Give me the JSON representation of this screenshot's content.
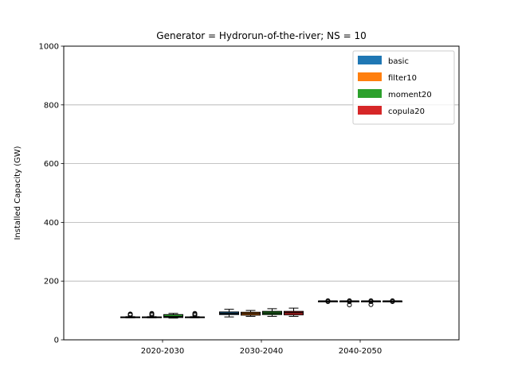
{
  "chart_data": {
    "type": "box",
    "title": "Generator = Hydrorun-of-the-river; NS = 10",
    "xlabel": "",
    "ylabel": "Installed Capacity (GW)",
    "ylim": [
      0,
      1000
    ],
    "yticks": [
      0,
      200,
      400,
      600,
      800,
      1000
    ],
    "grid": "y",
    "legend_placement": "top-right",
    "categories": [
      "2020-2030",
      "2030-2040",
      "2040-2050"
    ],
    "series": [
      {
        "name": "basic",
        "color": "#1f77b4",
        "boxes": [
          {
            "whislo": 75,
            "q1": 76,
            "med": 77,
            "q3": 78,
            "whishi": 79,
            "fliers": [
              84,
              86,
              88
            ]
          },
          {
            "whislo": 78,
            "q1": 86,
            "med": 90,
            "q3": 95,
            "whishi": 104,
            "fliers": []
          },
          {
            "whislo": 132,
            "q1": 132,
            "med": 132,
            "q3": 132,
            "whishi": 132,
            "fliers": [
              130,
              133
            ]
          }
        ]
      },
      {
        "name": "filter10",
        "color": "#ff7f0e",
        "boxes": [
          {
            "whislo": 75,
            "q1": 76,
            "med": 77,
            "q3": 78,
            "whishi": 79,
            "fliers": [
              84,
              87,
              90
            ]
          },
          {
            "whislo": 80,
            "q1": 84,
            "med": 89,
            "q3": 94,
            "whishi": 100,
            "fliers": []
          },
          {
            "whislo": 132,
            "q1": 132,
            "med": 132,
            "q3": 132,
            "whishi": 132,
            "fliers": [
              119,
              130,
              133
            ]
          }
        ]
      },
      {
        "name": "moment20",
        "color": "#2ca02c",
        "boxes": [
          {
            "whislo": 74,
            "q1": 76,
            "med": 79,
            "q3": 86,
            "whishi": 90,
            "fliers": []
          },
          {
            "whislo": 80,
            "q1": 86,
            "med": 91,
            "q3": 97,
            "whishi": 106,
            "fliers": []
          },
          {
            "whislo": 132,
            "q1": 132,
            "med": 132,
            "q3": 132,
            "whishi": 132,
            "fliers": [
              120,
              130,
              133
            ]
          }
        ]
      },
      {
        "name": "copula20",
        "color": "#d62728",
        "boxes": [
          {
            "whislo": 75,
            "q1": 76,
            "med": 77,
            "q3": 78,
            "whishi": 79,
            "fliers": [
              84,
              87,
              90
            ]
          },
          {
            "whislo": 80,
            "q1": 85,
            "med": 92,
            "q3": 97,
            "whishi": 108,
            "fliers": []
          },
          {
            "whislo": 132,
            "q1": 132,
            "med": 132,
            "q3": 132,
            "whishi": 132,
            "fliers": [
              130,
              133
            ]
          }
        ]
      }
    ]
  }
}
